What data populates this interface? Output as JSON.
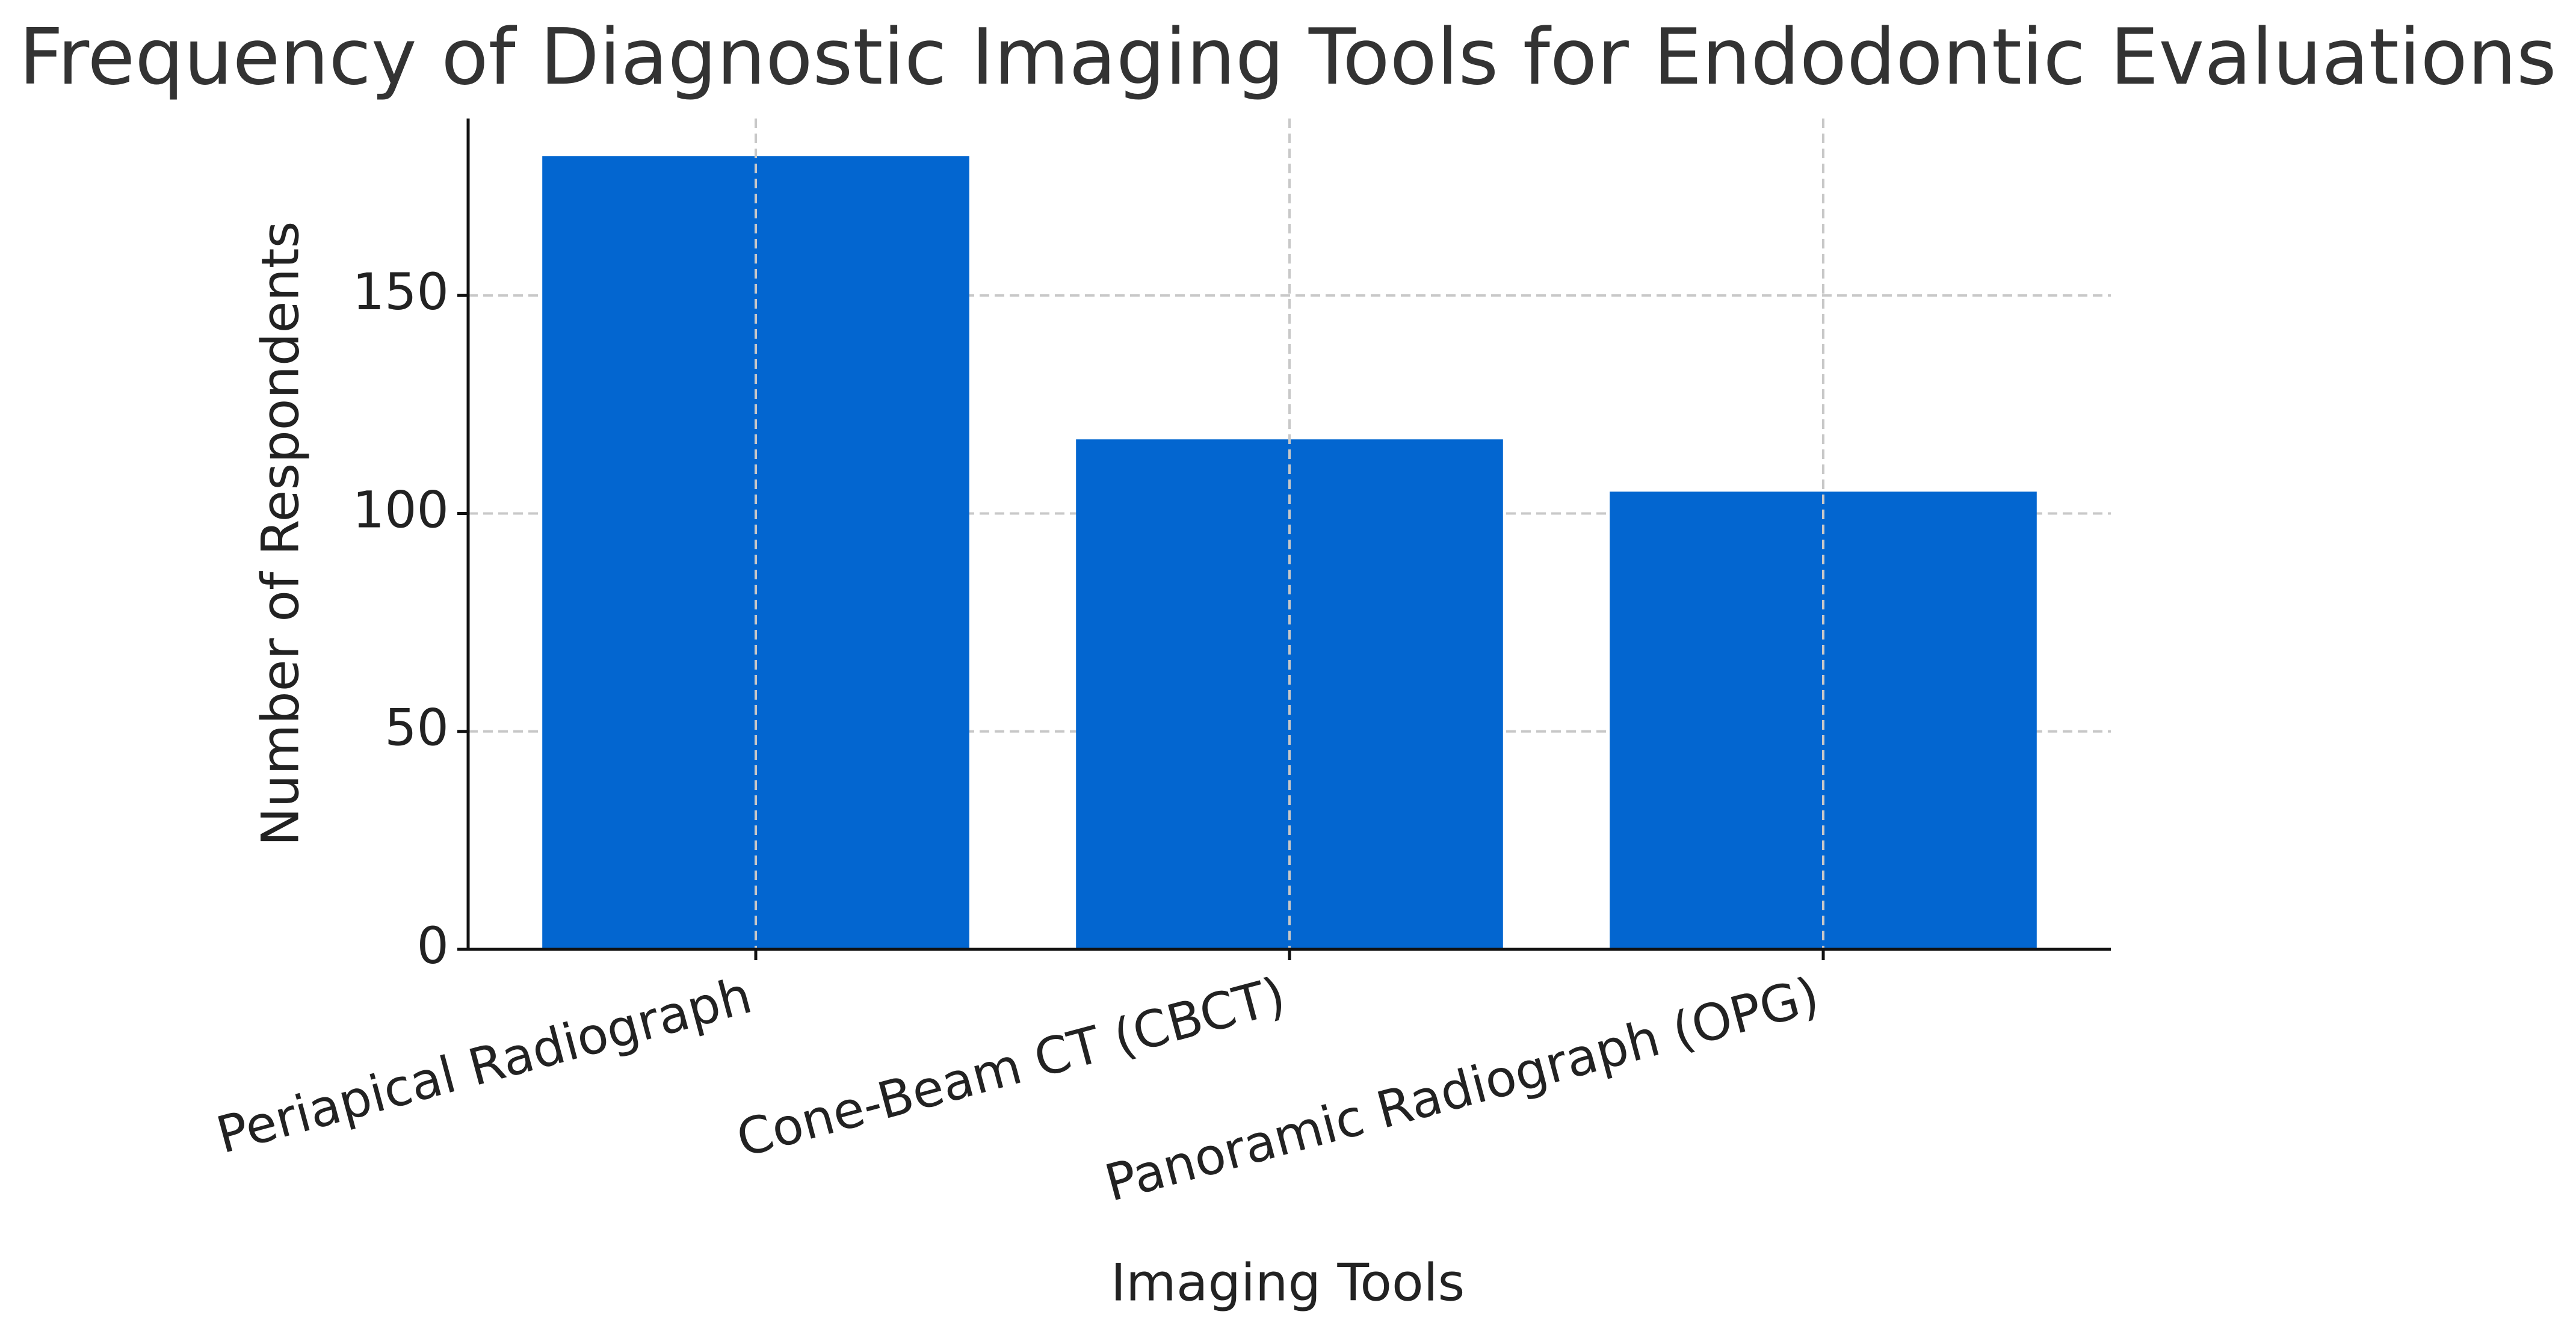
{
  "chart_data": {
    "type": "bar",
    "title": "Frequency of Diagnostic Imaging Tools for Endodontic Evaluations",
    "x_label": "Imaging Tools",
    "y_label": "Number of Respondents",
    "categories": [
      "Periapical Radiograph",
      "Cone-Beam CT (CBCT)",
      "Panoramic Radiograph (OPG)"
    ],
    "values": [
      182,
      117,
      105
    ],
    "color": "#0366d0",
    "ylim": [
      0,
      190.6
    ],
    "yticks": [
      0,
      50,
      100,
      150
    ],
    "grid": true
  }
}
